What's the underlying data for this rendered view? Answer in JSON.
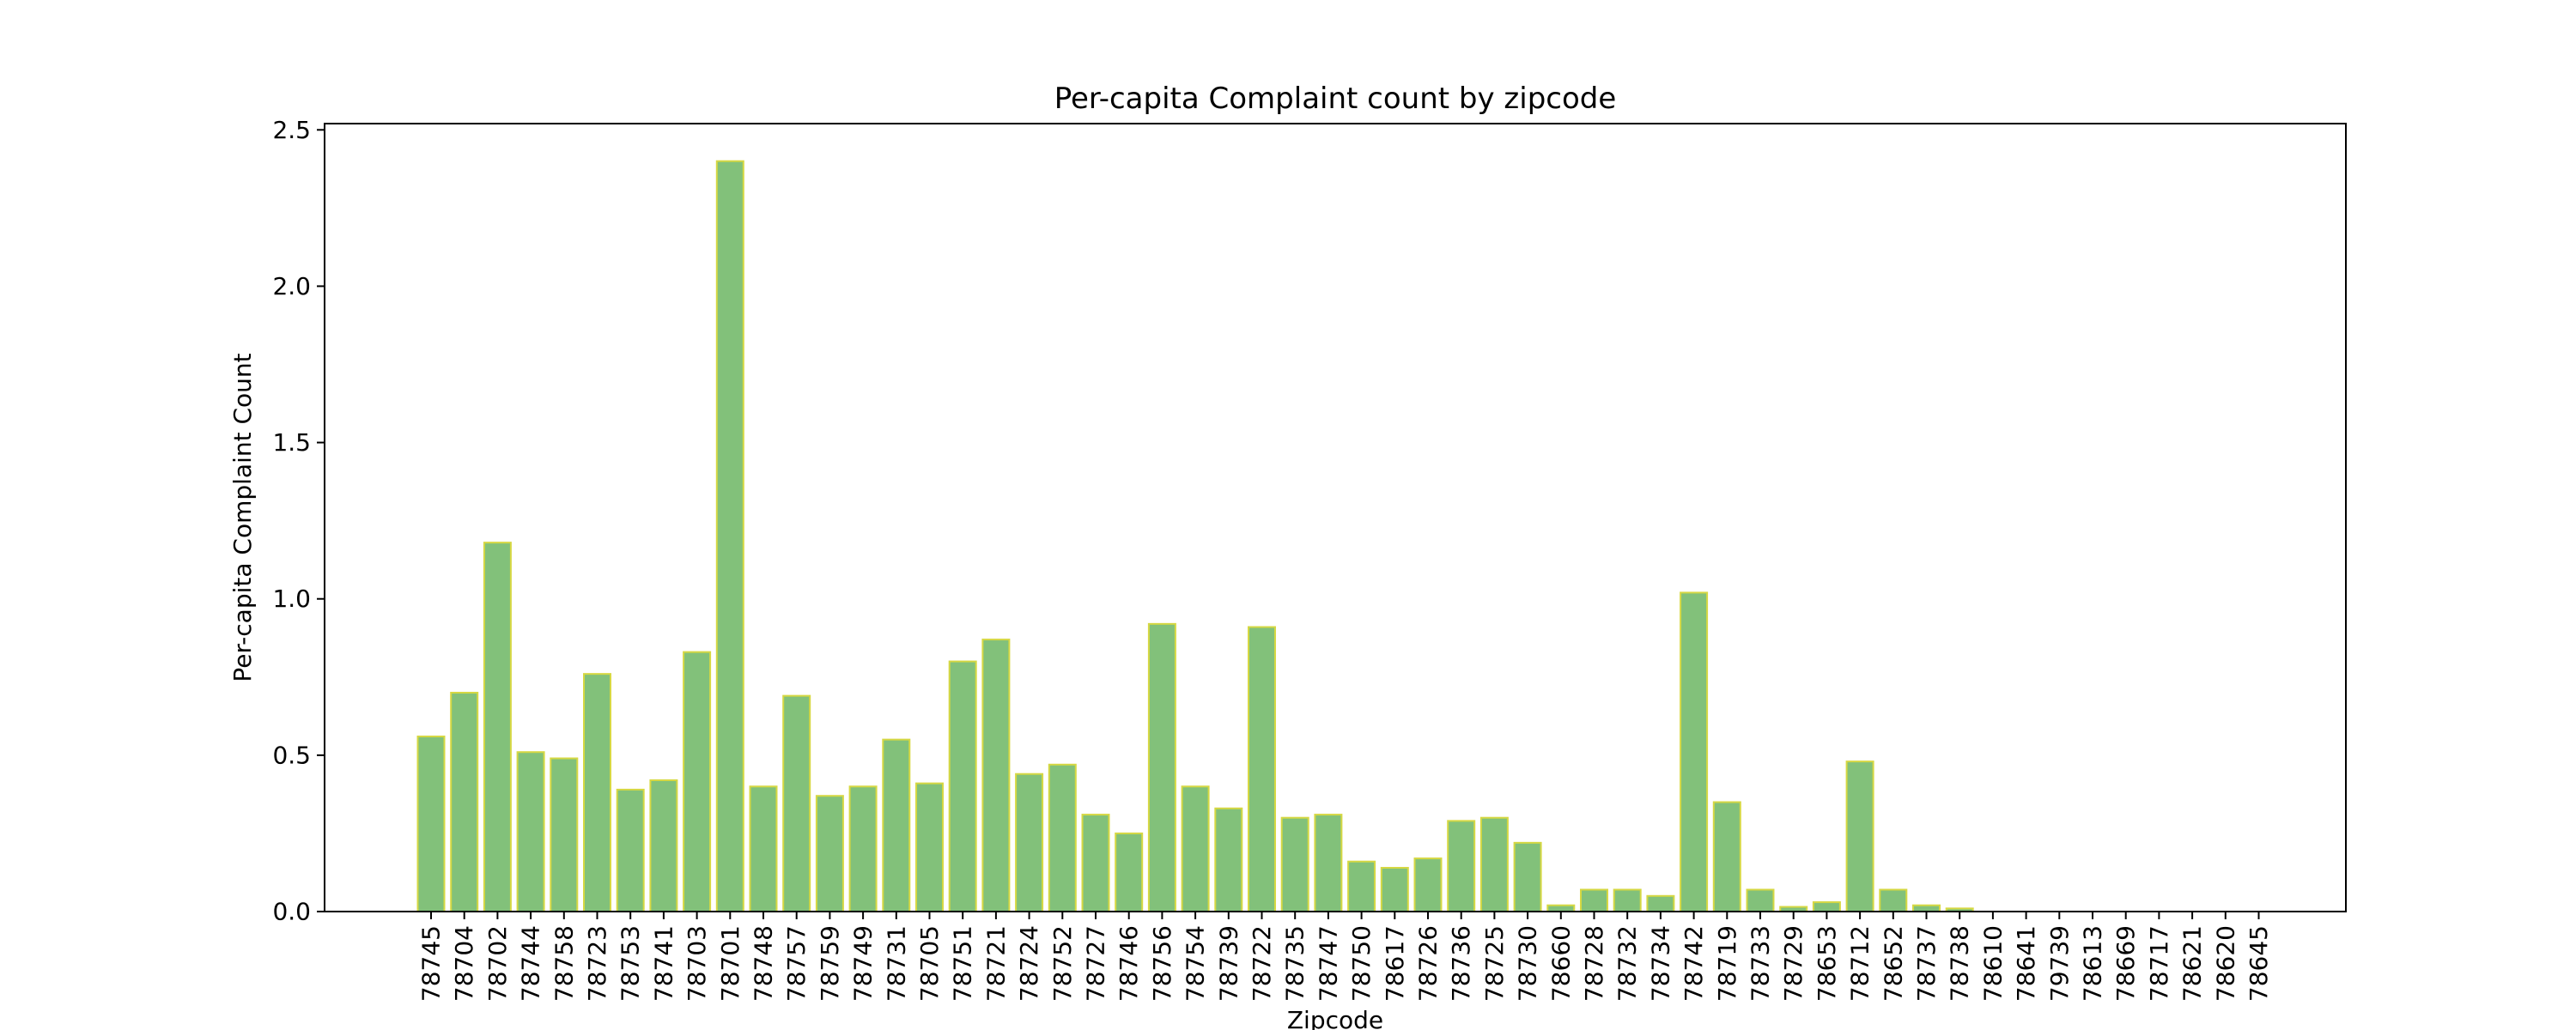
{
  "chart_data": {
    "type": "bar",
    "title": "Per-capita Complaint count by zipcode",
    "xlabel": "Zipcode",
    "ylabel": "Per-capita Complaint Count",
    "ylim": [
      0,
      2.52
    ],
    "yticks": [
      0.0,
      0.5,
      1.0,
      1.5,
      2.0,
      2.5
    ],
    "ytick_labels": [
      "0.0",
      "0.5",
      "1.0",
      "1.5",
      "2.0",
      "2.5"
    ],
    "grid": false,
    "legend": "none",
    "bar_color": "#82c17a",
    "bar_edge_color": "#d6d843",
    "categories": [
      "78745",
      "78704",
      "78702",
      "78744",
      "78758",
      "78723",
      "78753",
      "78741",
      "78703",
      "78701",
      "78748",
      "78757",
      "78759",
      "78749",
      "78731",
      "78705",
      "78751",
      "78721",
      "78724",
      "78752",
      "78727",
      "78746",
      "78756",
      "78754",
      "78739",
      "78722",
      "78735",
      "78747",
      "78750",
      "78617",
      "78726",
      "78736",
      "78725",
      "78730",
      "78660",
      "78728",
      "78732",
      "78734",
      "78742",
      "78719",
      "78733",
      "78729",
      "78653",
      "78712",
      "78652",
      "78737",
      "78738",
      "78610",
      "78641",
      "79739",
      "78613",
      "78669",
      "78717",
      "78621",
      "78620",
      "78645"
    ],
    "values": [
      0.56,
      0.7,
      1.18,
      0.51,
      0.49,
      0.76,
      0.39,
      0.42,
      0.83,
      2.4,
      0.4,
      0.69,
      0.37,
      0.4,
      0.55,
      0.41,
      0.8,
      0.87,
      0.44,
      0.47,
      0.31,
      0.25,
      0.92,
      0.4,
      0.33,
      0.91,
      0.3,
      0.31,
      0.16,
      0.14,
      0.17,
      0.29,
      0.3,
      0.22,
      0.02,
      0.07,
      0.07,
      0.05,
      1.02,
      0.35,
      0.07,
      0.015,
      0.03,
      0.48,
      0.07,
      0.02,
      0.01,
      0,
      0,
      0,
      0,
      0,
      0,
      0,
      0,
      0
    ]
  }
}
